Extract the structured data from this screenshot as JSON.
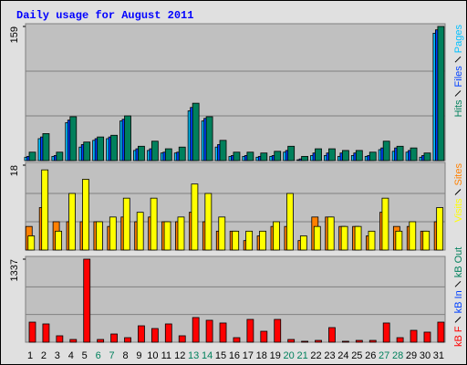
{
  "chart_data": [
    {
      "type": "bar",
      "title": "Daily usage for August 2011",
      "ylim": [
        0,
        159
      ],
      "yticks": [
        159
      ],
      "grid": true,
      "series": [
        {
          "name": "Pages",
          "color": "#00c0ff",
          "values": [
            4,
            26,
            5,
            45,
            16,
            24,
            26,
            47,
            12,
            12,
            9,
            9,
            59,
            47,
            16,
            5,
            5,
            4,
            5,
            10,
            1,
            6,
            6,
            5,
            6,
            5,
            13,
            11,
            10,
            4,
            151
          ]
        },
        {
          "name": "Files",
          "color": "#0040ff",
          "values": [
            5,
            28,
            6,
            48,
            19,
            26,
            28,
            49,
            14,
            14,
            10,
            10,
            63,
            50,
            19,
            6,
            6,
            5,
            6,
            12,
            2,
            9,
            9,
            9,
            9,
            6,
            15,
            15,
            12,
            6,
            155
          ]
        },
        {
          "name": "Hits",
          "color": "#00805c",
          "values": [
            10,
            32,
            10,
            52,
            22,
            28,
            30,
            53,
            17,
            23,
            14,
            16,
            68,
            52,
            24,
            10,
            10,
            9,
            11,
            17,
            5,
            14,
            14,
            12,
            12,
            10,
            23,
            17,
            15,
            9,
            159
          ]
        }
      ]
    },
    {
      "type": "bar",
      "ylim": [
        0,
        18
      ],
      "yticks": [
        18
      ],
      "grid": true,
      "series": [
        {
          "name": "Sites",
          "color": "#ff8000",
          "values": [
            5,
            9,
            6,
            6,
            6,
            6,
            5,
            7,
            6,
            7,
            6,
            6,
            8,
            6,
            4,
            4,
            2,
            3,
            5,
            5,
            2,
            7,
            7,
            5,
            5,
            3,
            8,
            5,
            5,
            4,
            6
          ]
        },
        {
          "name": "Visits",
          "color": "#ffff00",
          "values": [
            3,
            17,
            4,
            12,
            15,
            6,
            7,
            11,
            8,
            11,
            6,
            7,
            14,
            12,
            7,
            4,
            4,
            4,
            6,
            12,
            3,
            5,
            7,
            5,
            5,
            4,
            11,
            4,
            6,
            4,
            9
          ]
        }
      ]
    },
    {
      "type": "bar",
      "ylim": [
        0,
        1337
      ],
      "yticks": [
        1337
      ],
      "grid": true,
      "categories": [
        "1",
        "2",
        "3",
        "4",
        "5",
        "6",
        "7",
        "8",
        "9",
        "10",
        "11",
        "12",
        "13",
        "14",
        "15",
        "16",
        "17",
        "18",
        "19",
        "20",
        "21",
        "22",
        "23",
        "24",
        "25",
        "26",
        "27",
        "28",
        "29",
        "30",
        "31"
      ],
      "category_colors": [
        "#000000",
        "#000000",
        "#000000",
        "#000000",
        "#000000",
        "#00805c",
        "#00805c",
        "#000000",
        "#000000",
        "#000000",
        "#000000",
        "#000000",
        "#00805c",
        "#00805c",
        "#000000",
        "#000000",
        "#000000",
        "#000000",
        "#000000",
        "#00805c",
        "#00805c",
        "#000000",
        "#000000",
        "#000000",
        "#000000",
        "#000000",
        "#00805c",
        "#00805c",
        "#000000",
        "#000000",
        "#000000"
      ],
      "series": [
        {
          "name": "kB Out",
          "color": "#00805c",
          "values": [
            0,
            0,
            0,
            0,
            0,
            0,
            0,
            0,
            0,
            0,
            0,
            0,
            0,
            0,
            0,
            0,
            0,
            0,
            0,
            0,
            0,
            0,
            0,
            0,
            0,
            0,
            0,
            0,
            0,
            0,
            0
          ]
        },
        {
          "name": "kB In",
          "color": "#0040ff",
          "values": [
            0,
            0,
            0,
            0,
            0,
            0,
            0,
            0,
            0,
            0,
            0,
            0,
            0,
            0,
            0,
            0,
            0,
            0,
            0,
            0,
            0,
            0,
            0,
            0,
            0,
            0,
            0,
            0,
            0,
            0,
            0
          ]
        },
        {
          "name": "kB F",
          "color": "#ff0000",
          "values": [
            323,
            294,
            103,
            44,
            1337,
            44,
            132,
            73,
            264,
            220,
            294,
            103,
            397,
            353,
            309,
            73,
            367,
            176,
            367,
            44,
            15,
            29,
            235,
            15,
            29,
            29,
            309,
            73,
            191,
            162,
            323
          ]
        }
      ]
    }
  ]
}
